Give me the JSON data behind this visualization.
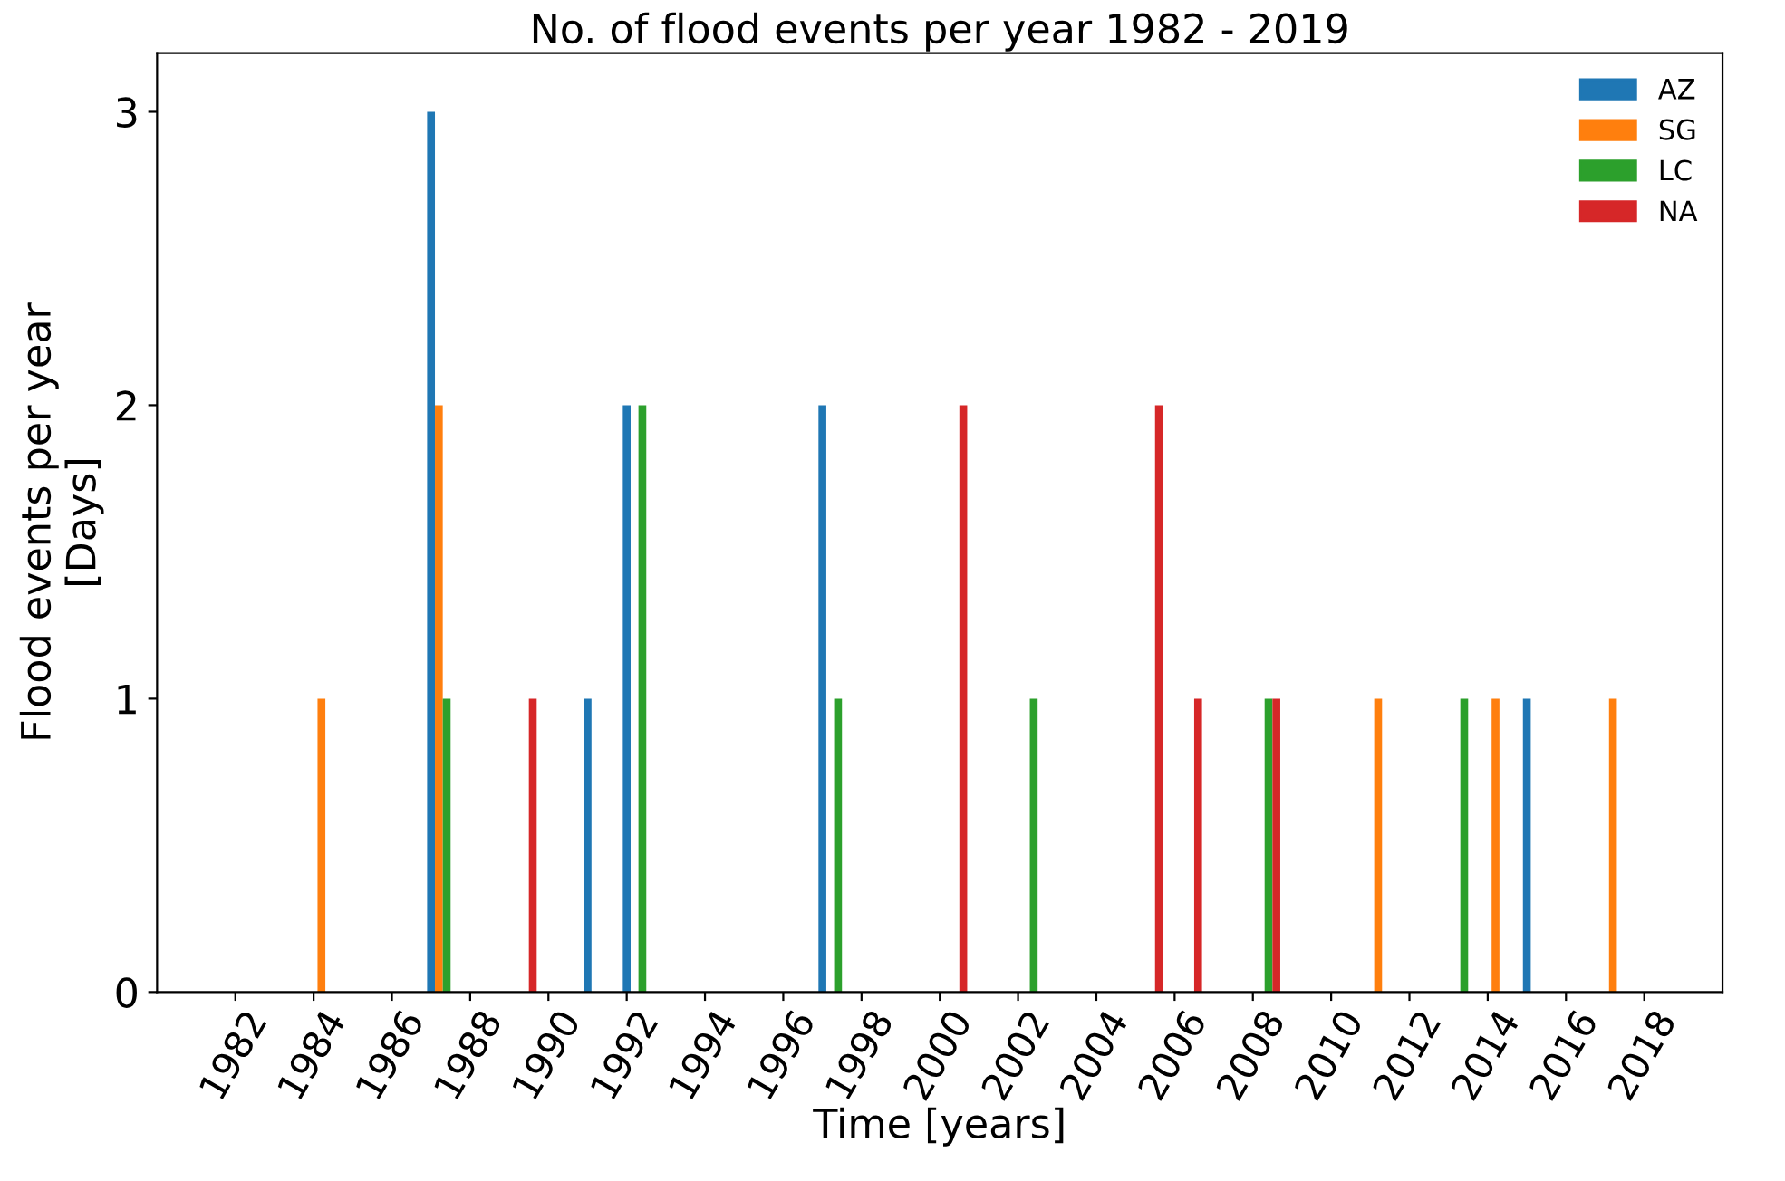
{
  "chart_data": {
    "type": "bar",
    "title": "No. of flood events per year 1982 - 2019",
    "xlabel": "Time [years]",
    "ylabel": "Flood events per year\n[Days]",
    "series": [
      {
        "name": "AZ",
        "color": "#1f77b4",
        "x": [
          1987,
          1991,
          1992,
          1997,
          2015
        ],
        "values": [
          3,
          1,
          2,
          2,
          1
        ]
      },
      {
        "name": "SG",
        "color": "#ff7f0e",
        "x": [
          1984.2,
          1987.2,
          2011.2,
          2014.2,
          2017.2
        ],
        "values": [
          1,
          2,
          1,
          1,
          1
        ]
      },
      {
        "name": "LC",
        "color": "#2ca02c",
        "x": [
          1987.4,
          1992.4,
          1997.4,
          2002.4,
          2008.4,
          2013.4
        ],
        "values": [
          1,
          2,
          1,
          1,
          1,
          1
        ]
      },
      {
        "name": "NA",
        "color": "#d62728",
        "x": [
          1989.6,
          2000.6,
          2005.6,
          2006.6,
          2008.6
        ],
        "values": [
          1,
          2,
          2,
          1,
          1
        ]
      }
    ],
    "xlim": [
      1980,
      2020
    ],
    "xticks": [
      1982,
      1984,
      1986,
      1988,
      1990,
      1992,
      1994,
      1996,
      1998,
      2000,
      2002,
      2004,
      2006,
      2008,
      2010,
      2012,
      2014,
      2016,
      2018
    ],
    "ylim": [
      0,
      3.2
    ],
    "yticks": [
      0,
      1,
      2,
      3
    ],
    "grid": false,
    "legend": "top right"
  }
}
